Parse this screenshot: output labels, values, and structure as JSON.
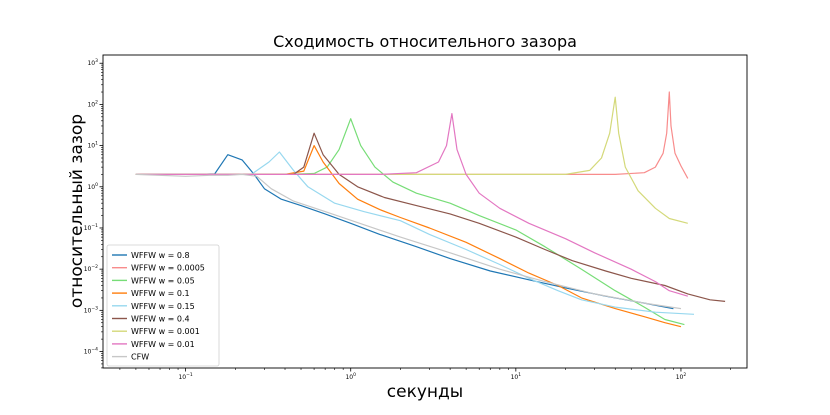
{
  "chart_data": {
    "type": "line",
    "title": "Сходимость относительного зазора",
    "xlabel": "секунды",
    "ylabel": "относительный зазор",
    "xscale": "log",
    "yscale": "log",
    "xlim": [
      0.0316,
      251.2
    ],
    "ylim": [
      3.98e-05,
      1585
    ],
    "x_ticks": [
      {
        "value": 0.1,
        "base": "10",
        "exp": "−1"
      },
      {
        "value": 1,
        "base": "10",
        "exp": "0"
      },
      {
        "value": 10,
        "base": "10",
        "exp": "1"
      },
      {
        "value": 100,
        "base": "10",
        "exp": "2"
      }
    ],
    "y_ticks": [
      {
        "value": 0.0001,
        "base": "10",
        "exp": "−4"
      },
      {
        "value": 0.001,
        "base": "10",
        "exp": "−3"
      },
      {
        "value": 0.01,
        "base": "10",
        "exp": "−2"
      },
      {
        "value": 0.1,
        "base": "10",
        "exp": "−1"
      },
      {
        "value": 1,
        "base": "10",
        "exp": "0"
      },
      {
        "value": 10,
        "base": "10",
        "exp": "1"
      },
      {
        "value": 100,
        "base": "10",
        "exp": "2"
      },
      {
        "value": 1000,
        "base": "10",
        "exp": "3"
      }
    ],
    "legend_position": "lower-left",
    "grid": false,
    "series": [
      {
        "name": "WFFW w = 0.8",
        "color": "#1f77b4",
        "points": [
          [
            0.05,
            2.0
          ],
          [
            0.08,
            2.0
          ],
          [
            0.12,
            2.0
          ],
          [
            0.15,
            2.05
          ],
          [
            0.18,
            6.0
          ],
          [
            0.22,
            4.5
          ],
          [
            0.26,
            2.0
          ],
          [
            0.3,
            0.9
          ],
          [
            0.38,
            0.5
          ],
          [
            0.5,
            0.35
          ],
          [
            0.7,
            0.22
          ],
          [
            1.0,
            0.13
          ],
          [
            1.5,
            0.07
          ],
          [
            2.5,
            0.035
          ],
          [
            4,
            0.018
          ],
          [
            7,
            0.009
          ],
          [
            12,
            0.0055
          ],
          [
            20,
            0.0035
          ],
          [
            35,
            0.0022
          ],
          [
            60,
            0.0015
          ],
          [
            90,
            0.0011
          ]
        ]
      },
      {
        "name": "WFFW w = 0.0005",
        "color": "#f88c8c",
        "points": [
          [
            0.05,
            2.0
          ],
          [
            0.2,
            2.0
          ],
          [
            1,
            2.0
          ],
          [
            5,
            2.0
          ],
          [
            20,
            2.0
          ],
          [
            40,
            2.0
          ],
          [
            60,
            2.2
          ],
          [
            70,
            3.0
          ],
          [
            78,
            6.5
          ],
          [
            82,
            20
          ],
          [
            85,
            200
          ],
          [
            87,
            30
          ],
          [
            92,
            6.5
          ],
          [
            100,
            3.2
          ],
          [
            110,
            1.6
          ]
        ]
      },
      {
        "name": "WFFW w = 0.05",
        "color": "#77dd77",
        "points": [
          [
            0.05,
            2.0
          ],
          [
            0.15,
            2.0
          ],
          [
            0.4,
            2.0
          ],
          [
            0.6,
            2.1
          ],
          [
            0.72,
            3.0
          ],
          [
            0.85,
            8.0
          ],
          [
            1.0,
            45
          ],
          [
            1.15,
            10
          ],
          [
            1.4,
            3.0
          ],
          [
            1.8,
            1.3
          ],
          [
            2.5,
            0.7
          ],
          [
            4,
            0.4
          ],
          [
            6,
            0.2
          ],
          [
            10,
            0.09
          ],
          [
            15,
            0.035
          ],
          [
            25,
            0.01
          ],
          [
            40,
            0.003
          ],
          [
            60,
            0.0012
          ],
          [
            80,
            0.0006
          ],
          [
            105,
            0.00045
          ]
        ]
      },
      {
        "name": "WFFW w = 0.1",
        "color": "#ff7f0e",
        "points": [
          [
            0.05,
            2.0
          ],
          [
            0.2,
            2.0
          ],
          [
            0.4,
            2.0
          ],
          [
            0.52,
            2.4
          ],
          [
            0.6,
            10
          ],
          [
            0.68,
            4.0
          ],
          [
            0.85,
            1.2
          ],
          [
            1.1,
            0.5
          ],
          [
            1.5,
            0.28
          ],
          [
            2,
            0.18
          ],
          [
            3,
            0.1
          ],
          [
            5,
            0.045
          ],
          [
            8,
            0.018
          ],
          [
            12,
            0.008
          ],
          [
            18,
            0.004
          ],
          [
            25,
            0.002
          ],
          [
            40,
            0.0011
          ],
          [
            60,
            0.0007
          ],
          [
            80,
            0.0005
          ],
          [
            100,
            0.0004
          ]
        ]
      },
      {
        "name": "WFFW w = 0.15",
        "color": "#98d8ef",
        "points": [
          [
            0.05,
            2.0
          ],
          [
            0.15,
            2.0
          ],
          [
            0.25,
            2.0
          ],
          [
            0.32,
            4.0
          ],
          [
            0.37,
            7.0
          ],
          [
            0.45,
            2.5
          ],
          [
            0.55,
            1.0
          ],
          [
            0.8,
            0.4
          ],
          [
            1.2,
            0.25
          ],
          [
            2,
            0.15
          ],
          [
            3,
            0.07
          ],
          [
            5,
            0.03
          ],
          [
            8,
            0.013
          ],
          [
            12,
            0.006
          ],
          [
            18,
            0.003
          ],
          [
            25,
            0.0018
          ],
          [
            40,
            0.0012
          ],
          [
            70,
            0.0009
          ],
          [
            120,
            0.0008
          ]
        ]
      },
      {
        "name": "WFFW w = 0.4",
        "color": "#8c564b",
        "points": [
          [
            0.05,
            2.0
          ],
          [
            0.2,
            2.0
          ],
          [
            0.45,
            2.0
          ],
          [
            0.52,
            3.0
          ],
          [
            0.6,
            20
          ],
          [
            0.68,
            6.0
          ],
          [
            0.85,
            2.0
          ],
          [
            1.1,
            1.0
          ],
          [
            1.6,
            0.55
          ],
          [
            2.5,
            0.35
          ],
          [
            4,
            0.22
          ],
          [
            6,
            0.13
          ],
          [
            10,
            0.06
          ],
          [
            15,
            0.03
          ],
          [
            22,
            0.016
          ],
          [
            35,
            0.009
          ],
          [
            50,
            0.006
          ],
          [
            80,
            0.004
          ],
          [
            110,
            0.0025
          ],
          [
            150,
            0.0018
          ],
          [
            185,
            0.00165
          ]
        ]
      },
      {
        "name": "WFFW w = 0.001",
        "color": "#d4d97a",
        "points": [
          [
            0.05,
            2.0
          ],
          [
            0.5,
            2.0
          ],
          [
            3,
            2.0
          ],
          [
            10,
            2.0
          ],
          [
            20,
            2.0
          ],
          [
            28,
            2.5
          ],
          [
            33,
            5
          ],
          [
            37,
            20
          ],
          [
            40,
            150
          ],
          [
            42,
            20
          ],
          [
            46,
            3
          ],
          [
            55,
            0.8
          ],
          [
            70,
            0.3
          ],
          [
            85,
            0.17
          ],
          [
            110,
            0.13
          ]
        ]
      },
      {
        "name": "WFFW w = 0.01",
        "color": "#e377c2",
        "points": [
          [
            0.05,
            2.0
          ],
          [
            0.5,
            2.0
          ],
          [
            1.5,
            2.0
          ],
          [
            2.5,
            2.2
          ],
          [
            3.4,
            4
          ],
          [
            3.8,
            10
          ],
          [
            4.1,
            60
          ],
          [
            4.4,
            8
          ],
          [
            5,
            2.0
          ],
          [
            6,
            0.7
          ],
          [
            8,
            0.3
          ],
          [
            12,
            0.13
          ],
          [
            20,
            0.055
          ],
          [
            30,
            0.025
          ],
          [
            50,
            0.01
          ],
          [
            70,
            0.005
          ],
          [
            85,
            0.003
          ],
          [
            110,
            0.0022
          ]
        ]
      },
      {
        "name": "CFW",
        "color": "#c7c7c7",
        "points": [
          [
            0.05,
            2.0
          ],
          [
            0.1,
            1.8
          ],
          [
            0.14,
            1.9
          ],
          [
            0.18,
            1.9
          ],
          [
            0.22,
            2.0
          ],
          [
            0.27,
            1.8
          ],
          [
            0.33,
            0.9
          ],
          [
            0.45,
            0.45
          ],
          [
            0.7,
            0.25
          ],
          [
            1.2,
            0.12
          ],
          [
            2,
            0.06
          ],
          [
            4,
            0.025
          ],
          [
            8,
            0.01
          ],
          [
            15,
            0.005
          ],
          [
            30,
            0.0025
          ],
          [
            60,
            0.0015
          ],
          [
            100,
            0.0011
          ]
        ]
      }
    ]
  }
}
